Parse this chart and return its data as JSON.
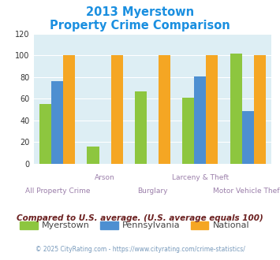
{
  "title_line1": "2013 Myerstown",
  "title_line2": "Property Crime Comparison",
  "title_color": "#1a8fe0",
  "categories": [
    "All Property Crime",
    "Arson",
    "Burglary",
    "Larceny & Theft",
    "Motor Vehicle Theft"
  ],
  "myerstown": [
    55,
    16,
    67,
    61,
    102
  ],
  "pennsylvania": [
    76,
    null,
    null,
    81,
    49
  ],
  "national": [
    100,
    100,
    100,
    100,
    100
  ],
  "color_myerstown": "#8dc63f",
  "color_pennsylvania": "#4d8fd1",
  "color_national": "#f5a623",
  "ylim": [
    0,
    120
  ],
  "yticks": [
    0,
    20,
    40,
    60,
    80,
    100,
    120
  ],
  "bg_color": "#ddeef4",
  "legend_label_myerstown": "Myerstown",
  "legend_label_pennsylvania": "Pennsylvania",
  "legend_label_national": "National",
  "legend_text_color": "#444444",
  "xlabel_color": "#9b7faa",
  "note_text": "Compared to U.S. average. (U.S. average equals 100)",
  "note_color": "#6b2020",
  "copyright_text": "© 2025 CityRating.com - https://www.cityrating.com/crime-statistics/",
  "copyright_color": "#7799bb",
  "grid_color": "white"
}
